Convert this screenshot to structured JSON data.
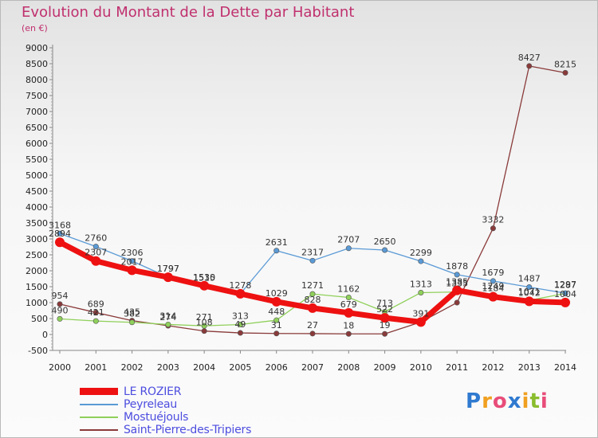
{
  "title": "Evolution du Montant de la Dette par Habitant",
  "subtitle": "(en €)",
  "logo": {
    "text": "Proxiti",
    "letters": [
      {
        "ch": "P",
        "color": "#2f7ad0"
      },
      {
        "ch": "r",
        "color": "#f0a020"
      },
      {
        "ch": "o",
        "color": "#e84d7a"
      },
      {
        "ch": "x",
        "color": "#2f7ad0"
      },
      {
        "ch": "i",
        "color": "#f0a020"
      },
      {
        "ch": "t",
        "color": "#8abd2e"
      },
      {
        "ch": "i",
        "color": "#e84d7a"
      }
    ]
  },
  "chart_data": {
    "type": "line",
    "title": "Evolution du Montant de la Dette par Habitant",
    "subtitle": "(en €)",
    "xlabel": "",
    "ylabel": "",
    "x": [
      "2000",
      "2001",
      "2002",
      "2003",
      "2004",
      "2005",
      "2006",
      "2007",
      "2008",
      "2009",
      "2010",
      "2011",
      "2012",
      "2013",
      "2014"
    ],
    "ylim": [
      -500,
      9000
    ],
    "yticks": [
      -500,
      0,
      500,
      1000,
      1500,
      2000,
      2500,
      3000,
      3500,
      4000,
      4500,
      5000,
      5500,
      6000,
      6500,
      7000,
      7500,
      8000,
      8500,
      9000
    ],
    "grid": false,
    "legend_position": "bottom-left",
    "series": [
      {
        "name": "LE ROZIER",
        "color": "#ee1111",
        "values": [
          2894,
          2307,
          2017,
          1797,
          1530,
          1278,
          1029,
          828,
          679,
          522,
          391,
          1385,
          1184,
          1042,
          1004
        ],
        "labels": [
          "2894",
          "2307",
          "2017",
          "1797",
          "1530",
          "1278",
          "1029",
          "828",
          "679",
          "522",
          "391",
          "1385",
          "1184",
          "1042",
          "1004"
        ]
      },
      {
        "name": "Peyreleau",
        "color": "#5a9ad6",
        "values": [
          3168,
          2760,
          2306,
          1797,
          1515,
          1278,
          2631,
          2317,
          2707,
          2650,
          2299,
          1878,
          1679,
          1487,
          1297
        ],
        "labels": [
          "3168",
          "2760",
          "2306",
          "1797",
          "1515",
          "",
          "2631",
          "2317",
          "2707",
          "2650",
          "2299",
          "1878",
          "1679",
          "1487",
          "1297"
        ]
      },
      {
        "name": "Mostuéjouls",
        "color": "#8fd05a",
        "values": [
          490,
          421,
          382,
          314,
          271,
          313,
          448,
          1271,
          1162,
          713,
          1313,
          1335,
          1249,
          1071,
          1287
        ],
        "labels": [
          "490",
          "421",
          "382",
          "314",
          "271",
          "313",
          "448",
          "1271",
          "1162",
          "713",
          "1313",
          "1335",
          "1249",
          "1071",
          "1287"
        ]
      },
      {
        "name": "Saint-Pierre-des-Tripiers",
        "color": "#8a3a3a",
        "values": [
          954,
          689,
          435,
          274,
          108,
          49,
          31,
          27,
          18,
          19,
          391,
          1000,
          3332,
          8427,
          8215
        ],
        "labels": [
          "954",
          "689",
          "435",
          "274",
          "108",
          "49",
          "31",
          "27",
          "18",
          "19",
          "",
          "",
          "3332",
          "8427",
          "8215"
        ]
      }
    ]
  }
}
